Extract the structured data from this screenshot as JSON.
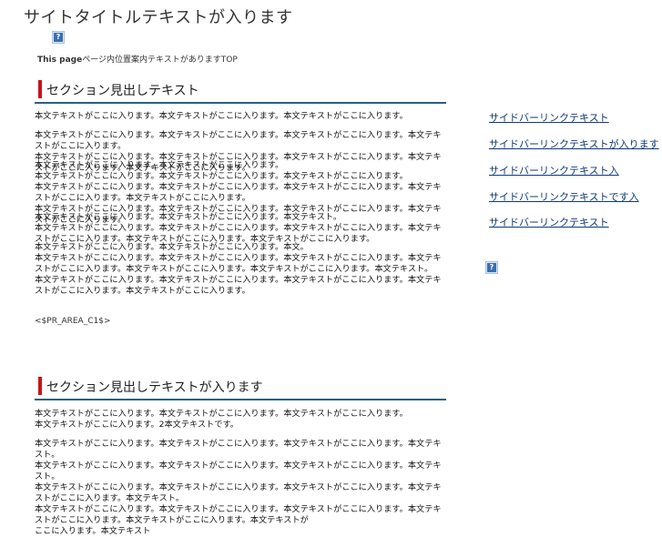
{
  "site_title": "サイトタイトルテキストが入ります",
  "header_image_icon": "broken-image-icon",
  "breadcrumb": {
    "this_page_label": "This page",
    "trail": "ページ内位置案内テキストがありますTOP"
  },
  "section1": {
    "heading": "セクション見出しテキスト",
    "paragraphs": [
      "本文テキストがここに入ります。本文テキストがここに入ります。本文テキストがここに入ります。",
      "本文テキストがここに入ります。本文テキストがここに入ります。本文テキストがここに入ります。本文テキストがここに入ります。\n本文テキストがここに入ります。本文テキストがここに入ります。本文テキストがここに入ります。本文テキストがここに入ります。本文テキストがここに入ります。",
      "本文テキストがここに入ります。本文テキストがここに入ります。\n本文テキストがここに入ります。本文テキストがここに入ります。本文テキストがここに入ります。\n本文テキストがここに入ります。本文テキストがここに入ります。本文テキストがここに入ります。本文テキストがここに入ります。本文テキストがここに入ります。\n本文テキストがここに入ります。本文テキストがここに入ります。本文テキストがここに入ります。本文テキストがここに入ります。",
      "本文テキストがここに入ります。本文テキストがここに入ります。本文テキスト。\n本文テキストがここに入ります。本文テキストがここに入ります。本文テキストがここに入ります。本文テキストがここに入ります。本文テキストがここに入ります。本文テキストがここに入ります。",
      "本文テキストがここに入ります。本文テキストがここに入ります。本文。\n本文テキストがここに入ります。本文テキストがここに入ります。本文テキストがここに入ります。本文テキストがここに入ります。本文テキストがここに入ります。本文テキストがここに入ります。本文テキスト。\n本文テキストがここに入ります。本文テキストがここに入ります。本文テキストがここに入ります。本文テキストがここに入ります。本文テキストがここに入ります。"
    ]
  },
  "pr_area": "<$PR_AREA_C1$>",
  "section2": {
    "heading": "セクション見出しテキストが入ります",
    "paragraphs": [
      "本文テキストがここに入ります。本文テキストがここに入ります。本文テキストがここに入ります。\n本文テキストがここに入ります。2本文テキストです。",
      "本文テキストがここに入ります。本文テキストがここに入ります。本文テキストがここに入ります。本文テキスト。\n本文テキストがここに入ります。本文テキストがここに入ります。本文テキストがここに入ります。本文テキスト。\n本文テキストがここに入ります。本文テキストがここに入ります。本文テキストがここに入ります。本文テキストがここに入ります。本文テキスト。\n本文テキストがここに入ります。本文テキストがここに入ります。本文テキストがここに入ります。本文テキストがここに入ります。本文テキストがここに入ります。本文テキストが\nここに入ります。本文テキスト"
    ]
  },
  "sidebar": {
    "links": [
      "サイドバーリンクテキスト",
      "サイドバーリンクテキストが入ります",
      "サイドバーリンクテキスト入",
      "サイドバーリンクテキストです入",
      "サイドバーリンクテキスト"
    ],
    "image_icon": "broken-image-icon"
  }
}
